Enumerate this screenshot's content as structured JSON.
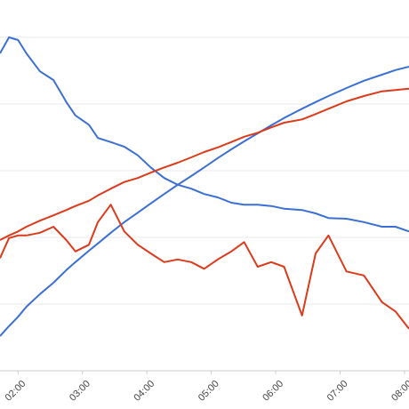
{
  "chart_data": {
    "type": "line",
    "x": [
      1.72,
      1.86,
      2.0,
      2.13,
      2.34,
      2.55,
      2.75,
      2.89,
      3.1,
      3.24,
      3.44,
      3.65,
      3.86,
      4.06,
      4.27,
      4.48,
      4.69,
      4.89,
      5.1,
      5.31,
      5.51,
      5.72,
      5.93,
      6.13,
      6.41,
      6.62,
      6.82,
      7.1,
      7.37,
      7.65,
      7.86,
      8.07
    ],
    "series": [
      {
        "color": "#3b6fd4",
        "values": [
          4.76,
          5.0,
          4.96,
          4.76,
          4.49,
          4.36,
          4.03,
          3.83,
          3.69,
          3.49,
          3.43,
          3.36,
          3.23,
          3.05,
          2.89,
          2.79,
          2.73,
          2.65,
          2.6,
          2.52,
          2.49,
          2.49,
          2.47,
          2.43,
          2.41,
          2.36,
          2.29,
          2.28,
          2.23,
          2.16,
          2.16,
          2.09
        ]
      },
      {
        "color": "#3b6fd4",
        "values": [
          0.52,
          0.67,
          0.81,
          0.96,
          1.15,
          1.32,
          1.51,
          1.63,
          1.8,
          1.91,
          2.07,
          2.23,
          2.37,
          2.51,
          2.65,
          2.79,
          2.92,
          3.05,
          3.19,
          3.32,
          3.44,
          3.56,
          3.68,
          3.79,
          3.93,
          4.03,
          4.12,
          4.24,
          4.35,
          4.44,
          4.51,
          4.56
        ]
      },
      {
        "color": "#db3a1b",
        "values": [
          1.96,
          2.03,
          2.09,
          2.16,
          2.25,
          2.33,
          2.41,
          2.47,
          2.55,
          2.63,
          2.73,
          2.83,
          2.89,
          2.97,
          3.05,
          3.12,
          3.2,
          3.28,
          3.35,
          3.43,
          3.51,
          3.57,
          3.65,
          3.72,
          3.77,
          3.85,
          3.93,
          4.04,
          4.12,
          4.19,
          4.21,
          4.23
        ]
      },
      {
        "color": "#db3a1b",
        "values": [
          1.69,
          1.99,
          2.03,
          2.03,
          2.07,
          2.16,
          1.96,
          1.79,
          1.89,
          2.23,
          2.49,
          2.09,
          1.89,
          1.76,
          1.63,
          1.67,
          1.63,
          1.53,
          1.67,
          1.79,
          1.93,
          1.56,
          1.63,
          1.56,
          0.83,
          1.76,
          2.03,
          1.49,
          1.43,
          1.03,
          0.89,
          0.63
        ]
      }
    ],
    "xlim": [
      1.72,
      8.07
    ],
    "xticks": [
      {
        "value": 2,
        "label": "02:00"
      },
      {
        "value": 3,
        "label": "03:00"
      },
      {
        "value": 4,
        "label": "04:00"
      },
      {
        "value": 5,
        "label": "05:00"
      },
      {
        "value": 6,
        "label": "06:00"
      },
      {
        "value": 7,
        "label": "07:00"
      },
      {
        "value": 8,
        "label": "08:00"
      }
    ],
    "ylim": [
      0,
      5.56
    ],
    "ygrid": [
      0,
      1,
      2,
      3,
      4,
      5
    ]
  }
}
